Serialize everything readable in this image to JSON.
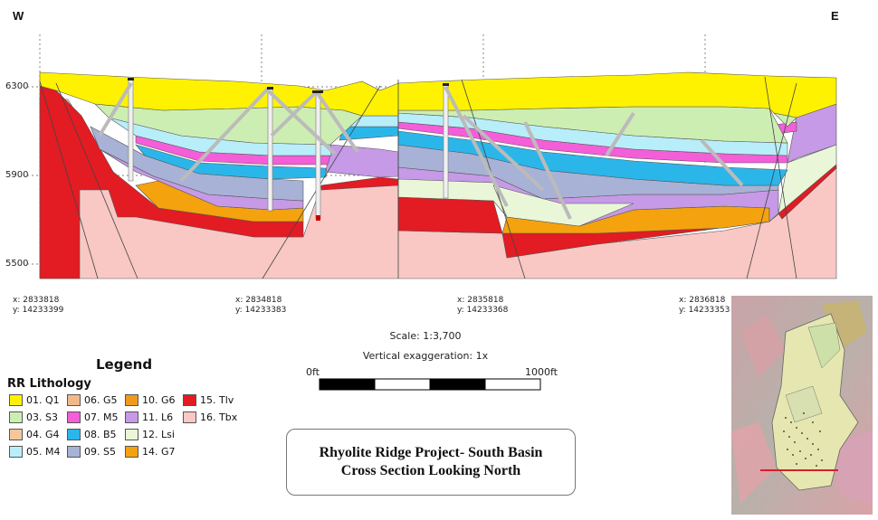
{
  "section": {
    "west_label": "W",
    "east_label": "E",
    "elevations": [
      "6300",
      "5900",
      "5500"
    ],
    "coordinates": [
      {
        "x": "x: 2833818",
        "y": "y: 14233399"
      },
      {
        "x": "x: 2834818",
        "y": "y: 14233383"
      },
      {
        "x": "x: 2835818",
        "y": "y: 14233368"
      },
      {
        "x": "x: 2836818",
        "y": "y: 14233353"
      }
    ]
  },
  "scale": {
    "scale_text": "Scale: 1:3,700",
    "vertical_exaggeration": "Vertical exaggeration: 1x",
    "bar_start": "0ft",
    "bar_end": "1000ft"
  },
  "legend": {
    "title": "Legend",
    "subtitle": "RR Lithology",
    "items": [
      {
        "label": "01. Q1",
        "color": "#fff200"
      },
      {
        "label": "03. S3",
        "color": "#cdeeb2"
      },
      {
        "label": "04. G4",
        "color": "#f7c79a"
      },
      {
        "label": "05. M4",
        "color": "#b8eefa"
      },
      {
        "label": "06. G5",
        "color": "#f2b88c"
      },
      {
        "label": "07. M5",
        "color": "#f45ed8"
      },
      {
        "label": "08. B5",
        "color": "#2bb6ea"
      },
      {
        "label": "09. S5",
        "color": "#a8b2d6"
      },
      {
        "label": "10. G6",
        "color": "#f09a1c"
      },
      {
        "label": "11. L6",
        "color": "#c69ae6"
      },
      {
        "label": "12. Lsi",
        "color": "#e9f7d8"
      },
      {
        "label": "14. G7",
        "color": "#f4a20e"
      },
      {
        "label": "15. Tlv",
        "color": "#e31b23"
      },
      {
        "label": "16. Tbx",
        "color": "#f9c8c4"
      }
    ]
  },
  "title_box": {
    "line1": "Rhyolite Ridge Project- South Basin",
    "line2": "Cross Section Looking North"
  }
}
